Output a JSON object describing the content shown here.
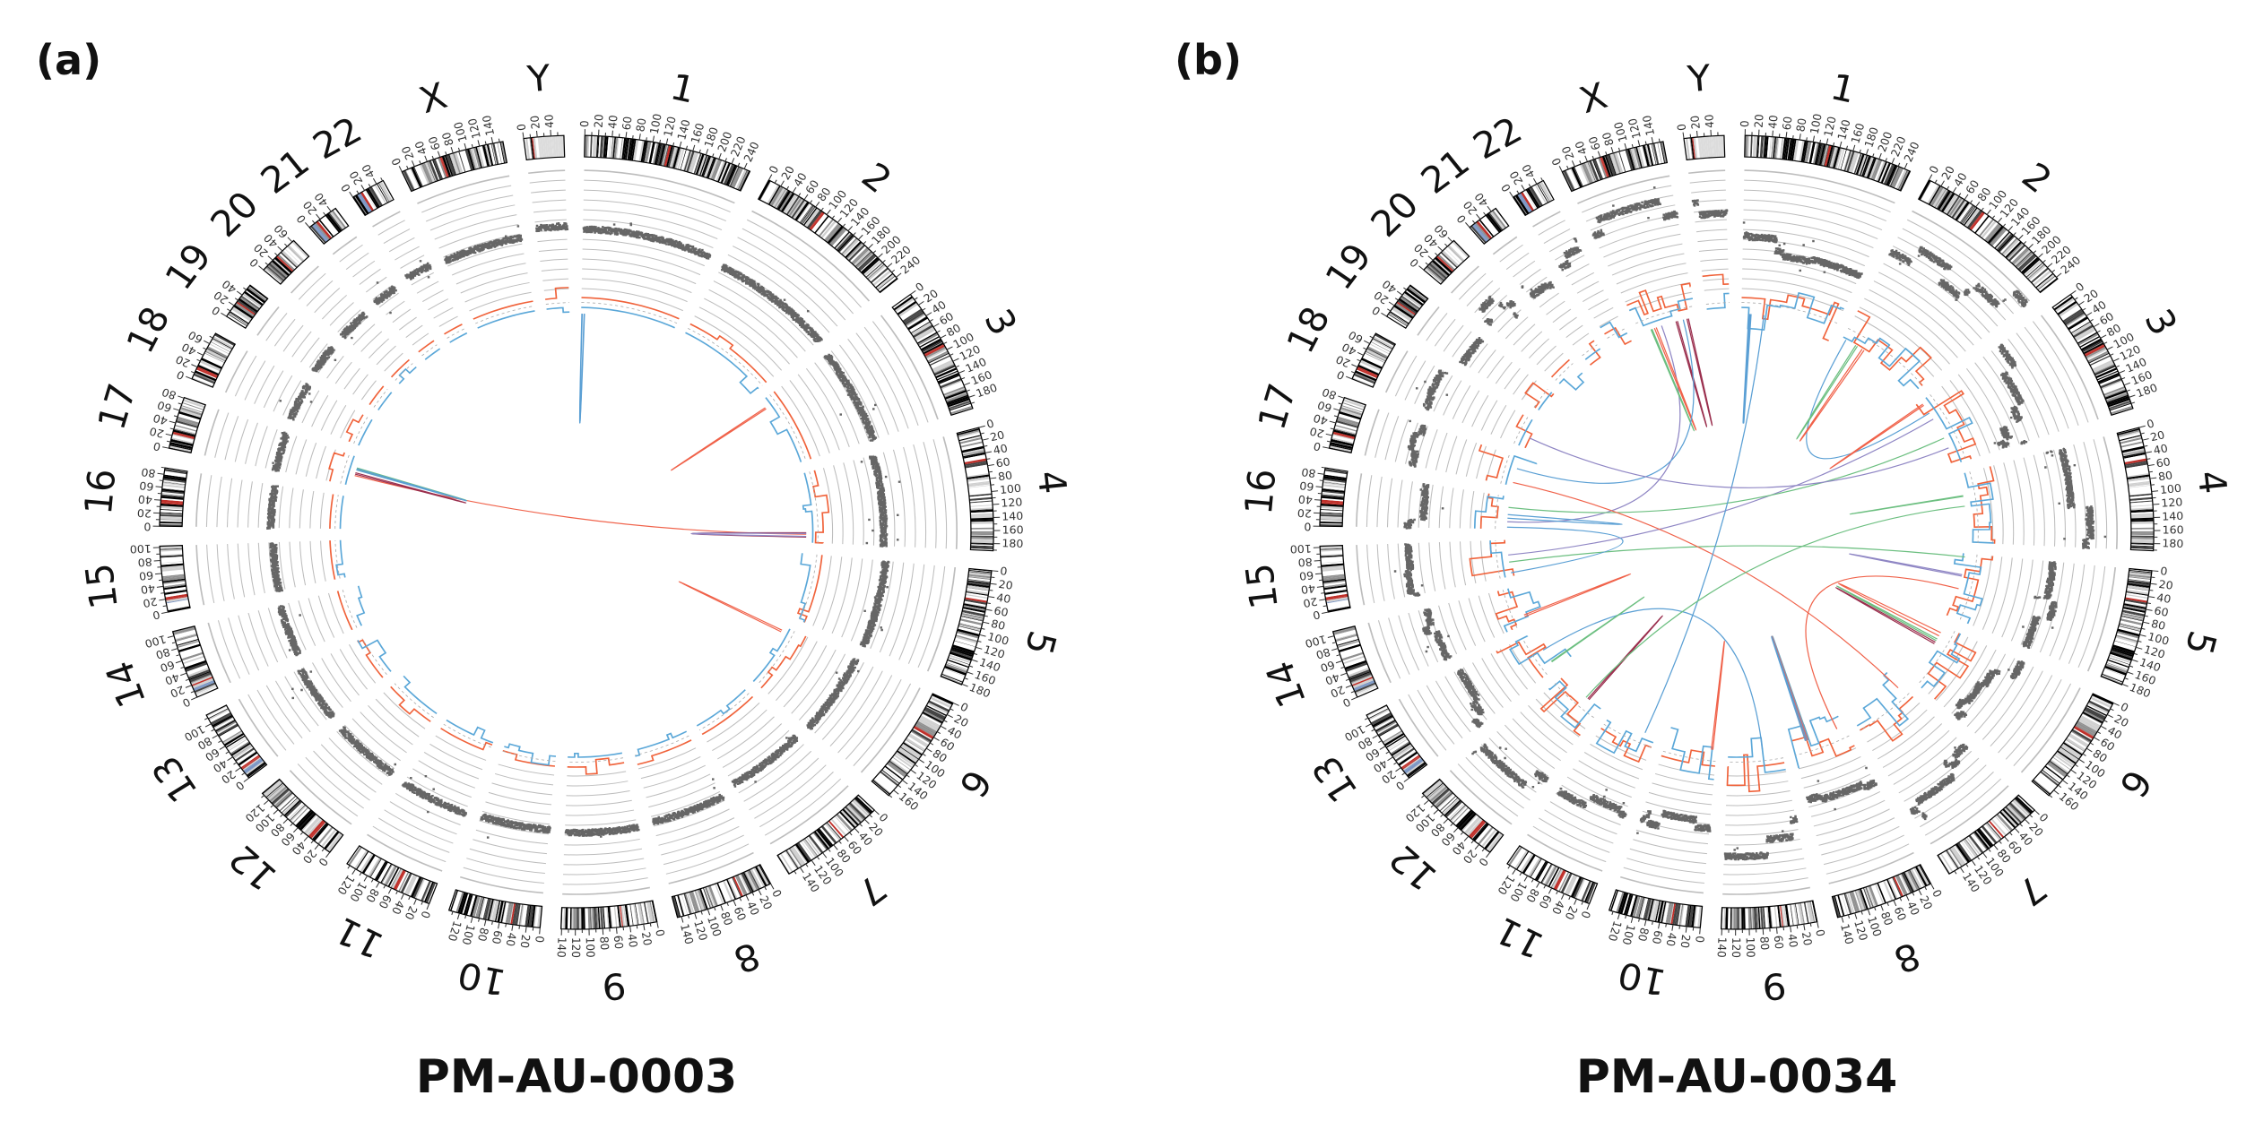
{
  "chromosomes": [
    {
      "name": "1",
      "length_mb": 249,
      "centromere_mb": 125
    },
    {
      "name": "2",
      "length_mb": 243,
      "centromere_mb": 93
    },
    {
      "name": "3",
      "length_mb": 198,
      "centromere_mb": 91
    },
    {
      "name": "4",
      "length_mb": 191,
      "centromere_mb": 50
    },
    {
      "name": "5",
      "length_mb": 181,
      "centromere_mb": 48
    },
    {
      "name": "6",
      "length_mb": 171,
      "centromere_mb": 60
    },
    {
      "name": "7",
      "length_mb": 159,
      "centromere_mb": 60
    },
    {
      "name": "8",
      "length_mb": 146,
      "centromere_mb": 45
    },
    {
      "name": "9",
      "length_mb": 141,
      "centromere_mb": 49
    },
    {
      "name": "10",
      "length_mb": 136,
      "centromere_mb": 40
    },
    {
      "name": "11",
      "length_mb": 135,
      "centromere_mb": 53
    },
    {
      "name": "12",
      "length_mb": 134,
      "centromere_mb": 35
    },
    {
      "name": "13",
      "length_mb": 115,
      "centromere_mb": 17
    },
    {
      "name": "14",
      "length_mb": 107,
      "centromere_mb": 17
    },
    {
      "name": "15",
      "length_mb": 102,
      "centromere_mb": 19
    },
    {
      "name": "16",
      "length_mb": 90,
      "centromere_mb": 36
    },
    {
      "name": "17",
      "length_mb": 81,
      "centromere_mb": 24
    },
    {
      "name": "18",
      "length_mb": 78,
      "centromere_mb": 17
    },
    {
      "name": "19",
      "length_mb": 59,
      "centromere_mb": 26
    },
    {
      "name": "20",
      "length_mb": 63,
      "centromere_mb": 28
    },
    {
      "name": "21",
      "length_mb": 48,
      "centromere_mb": 13
    },
    {
      "name": "22",
      "length_mb": 51,
      "centromere_mb": 14
    },
    {
      "name": "X",
      "length_mb": 155,
      "centromere_mb": 60
    },
    {
      "name": "Y",
      "length_mb": 59,
      "centromere_mb": 12
    }
  ],
  "tick_interval_mb": 20,
  "colors": {
    "centromere": "#c0302a",
    "stalk": "#7b96c4",
    "scatter": "#666666",
    "track_ring": "#bdbdbd",
    "gain_step": "#f0623a",
    "loss_step": "#5aa7d8",
    "link_red": "#f0624a",
    "link_blue": "#5a9fd4",
    "link_green": "#6cbf80",
    "link_purple": "#8f86c4",
    "link_darkred": "#9a2f4e"
  },
  "panels": [
    {
      "label": "(a)",
      "sample": "PM-AU-0003",
      "cn_levels": [
        0.42,
        0.38,
        0.35,
        0.3,
        0.33,
        0.32,
        0.3,
        0.36,
        0.38,
        0.36,
        0.38,
        0.36,
        0.35,
        0.3,
        0.28,
        0.3,
        0.32,
        0.34,
        0.36,
        0.36,
        0.38,
        0.4,
        0.38,
        0.45
      ],
      "links": [
        [
          "1",
          2,
          "1",
          9,
          "link_blue"
        ],
        [
          "1",
          3,
          "1",
          8,
          "link_blue"
        ],
        [
          "17",
          30,
          "4",
          168,
          "link_red"
        ],
        [
          "17",
          34,
          "17",
          38,
          "link_darkred"
        ],
        [
          "17",
          48,
          "17",
          52,
          "link_green"
        ],
        [
          "17",
          46,
          "17",
          50,
          "link_blue"
        ],
        [
          "3",
          22,
          "3",
          26,
          "link_red"
        ],
        [
          "4",
          164,
          "4",
          176,
          "link_darkred"
        ],
        [
          "4",
          166,
          "4",
          174,
          "link_purple"
        ],
        [
          "6",
          12,
          "6",
          17,
          "link_red"
        ]
      ]
    },
    {
      "label": "(b)",
      "sample": "PM-AU-0034",
      "cn_levels": [
        0.36,
        0.55,
        0.5,
        0.45,
        0.4,
        0.38,
        0.42,
        0.2,
        0.3,
        0.35,
        0.4,
        0.45,
        0.5,
        0.42,
        0.5,
        0.52,
        0.55,
        0.6,
        0.5,
        0.55,
        0.58,
        0.52,
        0.65,
        0.7
      ],
      "links": [
        [
          "1",
          20,
          "1",
          23,
          "link_blue"
        ],
        [
          "1",
          24,
          "1",
          26,
          "link_blue"
        ],
        [
          "X",
          60,
          "16",
          20,
          "link_purple"
        ],
        [
          "X",
          40,
          "X",
          45,
          "link_red"
        ],
        [
          "X",
          30,
          "X",
          33,
          "link_green"
        ],
        [
          "X",
          100,
          "X",
          104,
          "link_darkred"
        ],
        [
          "2",
          10,
          "3",
          40,
          "link_blue"
        ],
        [
          "2",
          40,
          "2",
          45,
          "link_green"
        ],
        [
          "2",
          60,
          "2",
          66,
          "link_red"
        ],
        [
          "3",
          10,
          "3",
          14,
          "link_red"
        ],
        [
          "3",
          60,
          "15",
          60,
          "link_purple"
        ],
        [
          "4",
          60,
          "4",
          62,
          "link_green"
        ],
        [
          "3",
          120,
          "16",
          60,
          "link_green"
        ],
        [
          "5",
          10,
          "15",
          40,
          "link_green"
        ],
        [
          "5",
          60,
          "5",
          64,
          "link_purple"
        ],
        [
          "5",
          100,
          "8",
          20,
          "link_red"
        ],
        [
          "6",
          20,
          "6",
          30,
          "link_red"
        ],
        [
          "6",
          40,
          "6",
          45,
          "link_green"
        ],
        [
          "6",
          50,
          "6",
          55,
          "link_darkred"
        ],
        [
          "7",
          10,
          "17",
          10,
          "link_red"
        ],
        [
          "8",
          100,
          "8",
          103,
          "link_blue"
        ],
        [
          "8",
          101,
          "8",
          105,
          "link_green"
        ],
        [
          "8",
          102,
          "8",
          106,
          "link_purple"
        ],
        [
          "8",
          104,
          "8",
          108,
          "link_red"
        ],
        [
          "8",
          106,
          "8",
          110,
          "link_blue"
        ],
        [
          "9",
          50,
          "13",
          60,
          "link_blue"
        ],
        [
          "10",
          10,
          "10",
          14,
          "link_red"
        ],
        [
          "11",
          30,
          "1",
          60,
          "link_blue"
        ],
        [
          "12",
          40,
          "12",
          44,
          "link_darkred"
        ],
        [
          "12",
          50,
          "4",
          90,
          "link_green"
        ],
        [
          "13",
          20,
          "13",
          22,
          "link_green"
        ],
        [
          "14",
          20,
          "14",
          25,
          "link_red"
        ],
        [
          "15",
          10,
          "16",
          5,
          "link_blue"
        ],
        [
          "16",
          30,
          "16",
          40,
          "link_blue"
        ],
        [
          "17",
          50,
          "X",
          120,
          "link_blue"
        ],
        [
          "18",
          30,
          "3",
          150,
          "link_purple"
        ],
        [
          "X",
          130,
          "X",
          134,
          "link_darkred"
        ]
      ]
    }
  ]
}
